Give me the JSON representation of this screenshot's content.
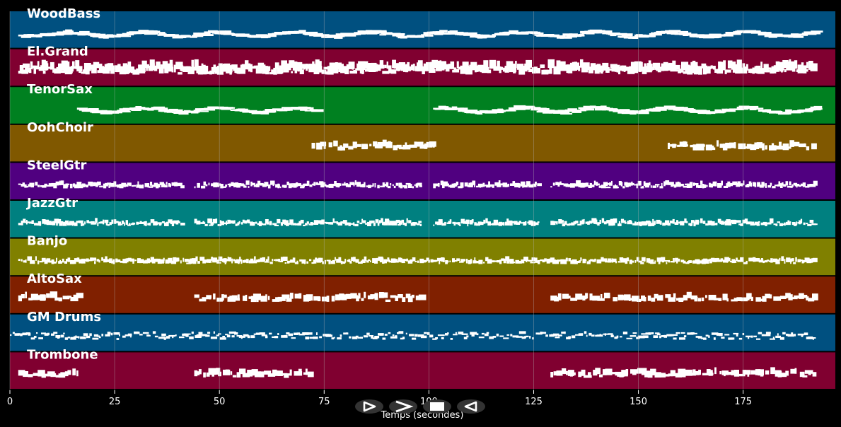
{
  "chart_data": {
    "type": "piano-roll",
    "xlabel": "Temps (secondes)",
    "xlim": [
      0,
      197
    ],
    "x_ticks": [
      0,
      25,
      50,
      75,
      100,
      125,
      150,
      175
    ],
    "grid": true,
    "tracks": [
      {
        "name": "WoodBass",
        "color": "#005080",
        "active": [
          [
            2,
            41
          ],
          [
            43,
            99
          ],
          [
            99,
            127
          ],
          [
            127,
            192
          ]
        ],
        "style": "line"
      },
      {
        "name": "El.Grand",
        "color": "#800030",
        "active": [
          [
            2,
            192
          ]
        ],
        "style": "dense"
      },
      {
        "name": "TenorSax",
        "color": "#008020",
        "active": [
          [
            16,
            72
          ],
          [
            101,
            192
          ]
        ],
        "style": "line"
      },
      {
        "name": "OohChoir",
        "color": "#805800",
        "active": [
          [
            72,
            101
          ],
          [
            157,
            192
          ]
        ],
        "style": "chords"
      },
      {
        "name": "SteelGtr",
        "color": "#500080",
        "active": [
          [
            2,
            41
          ],
          [
            44,
            98
          ],
          [
            101,
            126
          ],
          [
            129,
            192
          ]
        ],
        "style": "arpeggio"
      },
      {
        "name": "JazzGtr",
        "color": "#008080",
        "active": [
          [
            2,
            41
          ],
          [
            44,
            98
          ],
          [
            101,
            126
          ],
          [
            129,
            192
          ]
        ],
        "style": "arpeggio"
      },
      {
        "name": "Banjo",
        "color": "#808000",
        "active": [
          [
            2,
            192
          ]
        ],
        "style": "arpeggio"
      },
      {
        "name": "AltoSax",
        "color": "#802000",
        "active": [
          [
            2,
            16
          ],
          [
            44,
            98
          ],
          [
            129,
            192
          ]
        ],
        "style": "chords"
      },
      {
        "name": "GM Drums",
        "color": "#005080",
        "active": [
          [
            0,
            192
          ]
        ],
        "style": "drums"
      },
      {
        "name": "Trombone",
        "color": "#800030",
        "active": [
          [
            2,
            16
          ],
          [
            44,
            72
          ],
          [
            129,
            192
          ]
        ],
        "style": "chords"
      }
    ]
  },
  "controls": [
    {
      "id": "play-back",
      "glyph": "play-outline-icon"
    },
    {
      "id": "forward",
      "glyph": "chevron-right-icon"
    },
    {
      "id": "stop",
      "glyph": "stop-icon"
    },
    {
      "id": "rewind",
      "glyph": "play-reverse-icon"
    }
  ],
  "colors": {
    "background": "#000000",
    "grid": "#b4b4b4",
    "note": "#ffffff",
    "button_bg": "#333333",
    "button_glyph": "#ffffff"
  }
}
